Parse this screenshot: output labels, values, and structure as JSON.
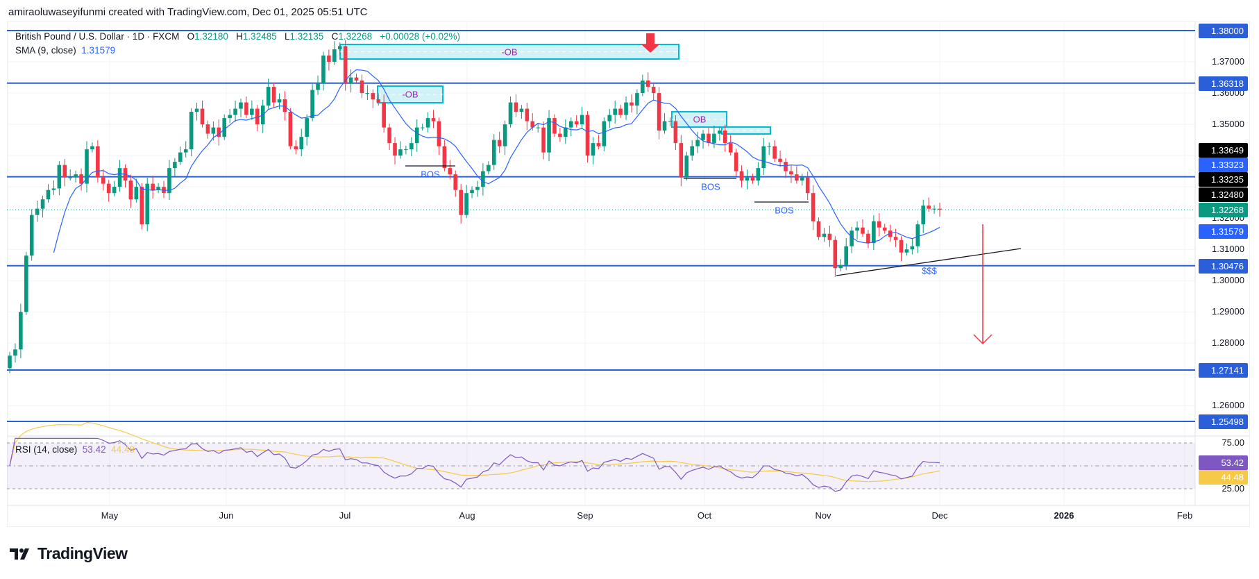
{
  "header": {
    "credit": "amiraoluwaseyifunmi created with TradingView.com, Dec 01, 2025 05:51 UTC"
  },
  "legend": {
    "symbol": "British Pound / U.S. Dollar · 1D · FXCM",
    "open_label": "O",
    "open": "1.32180",
    "high_label": "H",
    "high": "1.32485",
    "low_label": "L",
    "low": "1.32135",
    "close_label": "C",
    "close": "1.32268",
    "change": "+0.00028 (+0.02%)",
    "sma_label": "SMA (9, close)",
    "sma_value": "1.31579",
    "rsi_label": "RSI (14, close)",
    "rsi_value": "53.42",
    "rsi_ma_value": "44.48"
  },
  "colors": {
    "up": "#089981",
    "down": "#f23645",
    "level": "#2b5fd9",
    "sma": "#2962ff",
    "rsi": "#7e57c2",
    "rsi_ma": "#f7c948",
    "ob_fill": "#b2ebf2",
    "ob_border": "#00bcd4"
  },
  "price_labels": [
    {
      "text": "1.38000",
      "color": "#2b5fd9"
    },
    {
      "text": "1.36318",
      "color": "#2b5fd9"
    },
    {
      "text": "1.33649",
      "color": "#000000"
    },
    {
      "text": "1.33323",
      "color": "#2962ff"
    },
    {
      "text": "1.33235",
      "color": "#000000"
    },
    {
      "text": "1.32480",
      "color": "#000000"
    },
    {
      "text": "1.32268",
      "color": "#089981"
    },
    {
      "text": "1.31579",
      "color": "#2962ff"
    },
    {
      "text": "1.30476",
      "color": "#2b5fd9"
    },
    {
      "text": "1.27141",
      "color": "#2b5fd9"
    },
    {
      "text": "1.25498",
      "color": "#2b5fd9"
    },
    {
      "text": "53.42",
      "color": "#7e57c2"
    },
    {
      "text": "44.48",
      "color": "#f7c948"
    }
  ],
  "logo": {
    "text": "TradingView"
  },
  "chart_data": {
    "type": "candlestick",
    "title": "British Pound / U.S. Dollar · 1D · FXCM",
    "x_tick_labels": [
      "May",
      "Jun",
      "Jul",
      "Aug",
      "Sep",
      "Oct",
      "Nov",
      "Dec",
      "2026",
      "Feb"
    ],
    "y_tick_labels": [
      "1.37000",
      "1.36000",
      "1.35000",
      "1.32000",
      "1.31000",
      "1.30000",
      "1.29000",
      "1.28000",
      "1.26000"
    ],
    "ylim": [
      1.245,
      1.385
    ],
    "rsi_tick_labels": [
      "75.00",
      "25.00"
    ],
    "rsi_levels": [
      75,
      50,
      25
    ],
    "sma_period": 9,
    "rsi_period": 14,
    "close": [
      1.276,
      1.278,
      1.29,
      1.308,
      1.321,
      1.323,
      1.326,
      1.329,
      1.3295,
      1.337,
      1.333,
      1.333,
      1.334,
      1.331,
      1.342,
      1.343,
      1.333,
      1.331,
      1.328,
      1.33,
      1.336,
      1.332,
      1.326,
      1.33,
      1.318,
      1.331,
      1.329,
      1.33,
      1.328,
      1.336,
      1.338,
      1.341,
      1.342,
      1.354,
      1.355,
      1.35,
      1.347,
      1.349,
      1.346,
      1.352,
      1.353,
      1.355,
      1.357,
      1.353,
      1.355,
      1.35,
      1.356,
      1.362,
      1.357,
      1.358,
      1.354,
      1.343,
      1.342,
      1.346,
      1.352,
      1.361,
      1.363,
      1.372,
      1.37,
      1.374,
      1.375,
      1.363,
      1.365,
      1.364,
      1.36,
      1.36,
      1.358,
      1.357,
      1.349,
      1.344,
      1.34,
      1.342,
      1.342,
      1.344,
      1.349,
      1.349,
      1.352,
      1.351,
      1.343,
      1.336,
      1.334,
      1.329,
      1.321,
      1.328,
      1.329,
      1.33,
      1.335,
      1.337,
      1.345,
      1.343,
      1.35,
      1.357,
      1.354,
      1.355,
      1.351,
      1.349,
      1.349,
      1.341,
      1.352,
      1.347,
      1.346,
      1.349,
      1.351,
      1.35,
      1.353,
      1.34,
      1.344,
      1.343,
      1.351,
      1.353,
      1.355,
      1.353,
      1.357,
      1.356,
      1.36,
      1.364,
      1.362,
      1.36,
      1.348,
      1.351,
      1.351,
      1.344,
      1.333,
      1.34,
      1.343,
      1.345,
      1.347,
      1.344,
      1.347,
      1.348,
      1.344,
      1.341,
      1.335,
      1.332,
      1.333,
      1.332,
      1.336,
      1.343,
      1.343,
      1.339,
      1.338,
      1.335,
      1.334,
      1.332,
      1.333,
      1.328,
      1.319,
      1.314,
      1.315,
      1.313,
      1.304,
      1.305,
      1.311,
      1.316,
      1.317,
      1.315,
      1.312,
      1.319,
      1.317,
      1.316,
      1.314,
      1.313,
      1.309,
      1.31,
      1.311,
      1.318,
      1.324,
      1.323,
      1.323,
      1.32268
    ],
    "horizontal_levels": [
      1.38,
      1.36318,
      1.33323,
      1.30476,
      1.27141,
      1.25498
    ],
    "current_price": 1.32268,
    "annotations": {
      "ob_labels": [
        "-OB",
        "-OB",
        "OB"
      ],
      "bos_labels": [
        "BOS",
        "BOS",
        "BOS"
      ],
      "liquidity_label": "$$$"
    }
  }
}
